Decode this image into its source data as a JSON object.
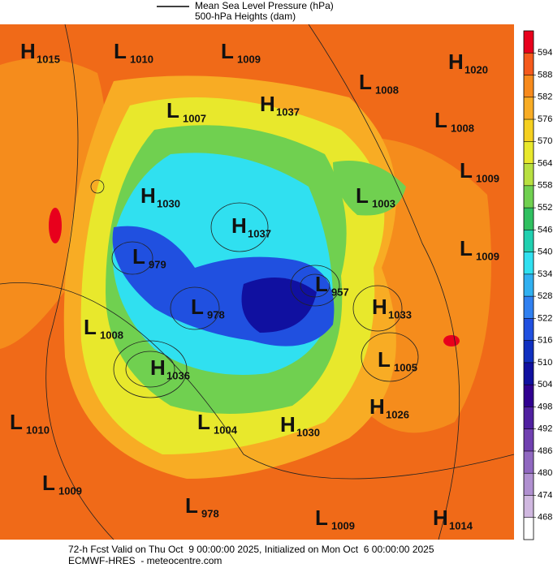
{
  "header": {
    "line_label": "Mean Sea Level Pressure (hPa)",
    "subtitle": "500-hPa Heights (dam)"
  },
  "colorbar": {
    "ticks": [
      594,
      588,
      582,
      576,
      570,
      564,
      558,
      552,
      546,
      540,
      534,
      528,
      522,
      516,
      510,
      504,
      498,
      492,
      486,
      480,
      474,
      468
    ],
    "colors": [
      "#e8001c",
      "#f55a1c",
      "#f78a1c",
      "#f8ac24",
      "#f5d020",
      "#e8e82c",
      "#b8e040",
      "#70d050",
      "#30c060",
      "#20d0b0",
      "#30e0f0",
      "#30b0f0",
      "#3080f0",
      "#2050e0",
      "#1030c0",
      "#1010a0",
      "#300090",
      "#5020a0",
      "#7040b0",
      "#9068c0",
      "#b090d0",
      "#d0b8e0",
      "#ffffff"
    ]
  },
  "centers": [
    {
      "type": "H",
      "value": 1015
    },
    {
      "type": "L",
      "value": 1010
    },
    {
      "type": "L",
      "value": 1009
    },
    {
      "type": "H",
      "value": 1020
    },
    {
      "type": "L",
      "value": 1008
    },
    {
      "type": "H",
      "value": 1037
    },
    {
      "type": "L",
      "value": 1007
    },
    {
      "type": "L",
      "value": 1008
    },
    {
      "type": "L",
      "value": 1009
    },
    {
      "type": "H",
      "value": 1030
    },
    {
      "type": "L",
      "value": 1003
    },
    {
      "type": "H",
      "value": 1037
    },
    {
      "type": "L",
      "value": 979
    },
    {
      "type": "L",
      "value": 1009
    },
    {
      "type": "L",
      "value": 957
    },
    {
      "type": "L",
      "value": 978
    },
    {
      "type": "H",
      "value": 1033
    },
    {
      "type": "L",
      "value": 1008
    },
    {
      "type": "H",
      "value": 1036
    },
    {
      "type": "L",
      "value": 1005
    },
    {
      "type": "L",
      "value": 1010
    },
    {
      "type": "L",
      "value": 1004
    },
    {
      "type": "H",
      "value": 1030
    },
    {
      "type": "H",
      "value": 1026
    },
    {
      "type": "L",
      "value": 1009
    },
    {
      "type": "L",
      "value": 978
    },
    {
      "type": "L",
      "value": 1009
    },
    {
      "type": "H",
      "value": 1014
    }
  ],
  "footer": {
    "line1": "72-h Fcst Valid on Thu Oct  9 00:00:00 2025, Initialized on Mon Oct  6 00:00:00 2025",
    "line2": "ECMWF-HRES  - meteocentre.com"
  }
}
